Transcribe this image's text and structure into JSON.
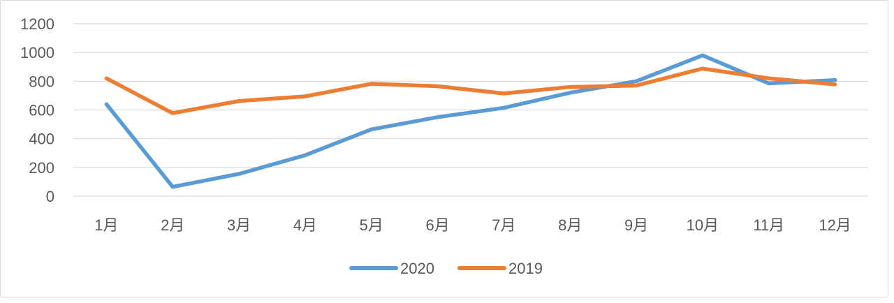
{
  "chart_data": {
    "type": "line",
    "categories": [
      "1月",
      "2月",
      "3月",
      "4月",
      "5月",
      "6月",
      "7月",
      "8月",
      "9月",
      "10月",
      "11月",
      "12月"
    ],
    "series": [
      {
        "name": "2020",
        "color": "#5b9bd5",
        "values": [
          640,
          65,
          155,
          285,
          465,
          550,
          615,
          720,
          800,
          980,
          785,
          808
        ]
      },
      {
        "name": "2019",
        "color": "#ed7d31",
        "values": [
          820,
          578,
          662,
          695,
          782,
          765,
          715,
          760,
          770,
          888,
          820,
          778
        ]
      }
    ],
    "y_ticks": [
      "0",
      "200",
      "400",
      "600",
      "800",
      "1000",
      "1200"
    ],
    "ylim": [
      0,
      1200
    ],
    "grid": true,
    "legend_position": "bottom"
  }
}
